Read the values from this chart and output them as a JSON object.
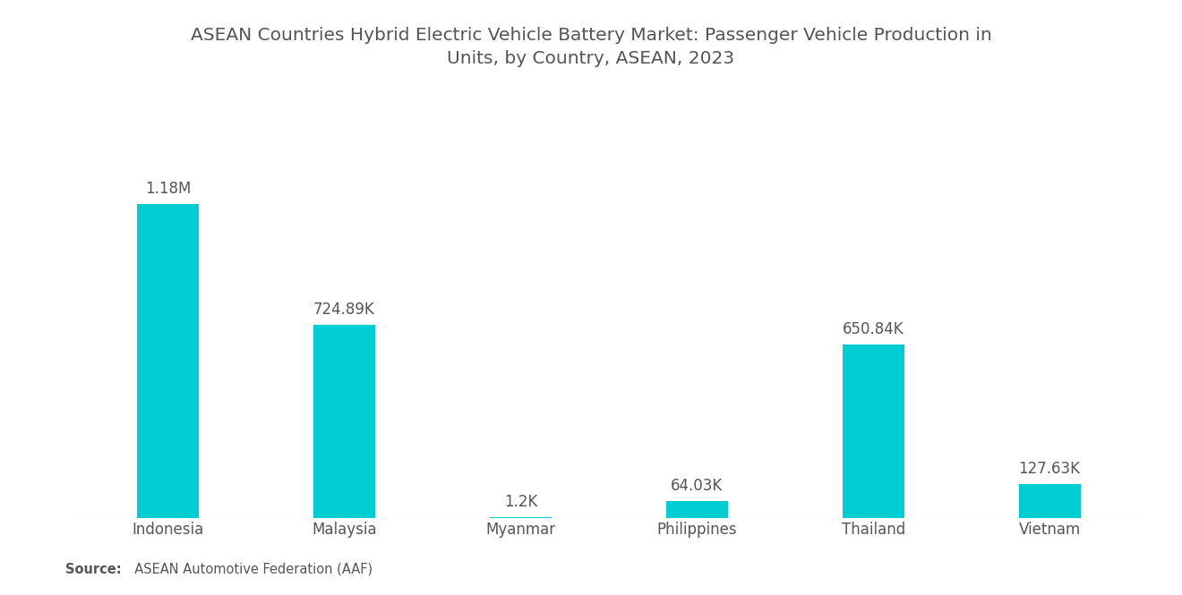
{
  "title": "ASEAN Countries Hybrid Electric Vehicle Battery Market: Passenger Vehicle Production in\nUnits, by Country, ASEAN, 2023",
  "categories": [
    "Indonesia",
    "Malaysia",
    "Myanmar",
    "Philippines",
    "Thailand",
    "Vietnam"
  ],
  "values": [
    1180000,
    724890,
    1200,
    64030,
    650840,
    127630
  ],
  "labels": [
    "1.18M",
    "724.89K",
    "1.2K",
    "64.03K",
    "650.84K",
    "127.63K"
  ],
  "bar_color": "#00CDD1",
  "background_color": "#ffffff",
  "source_bold": "Source:",
  "source_text": "  ASEAN Automotive Federation (AAF)",
  "title_fontsize": 14.5,
  "label_fontsize": 12,
  "category_fontsize": 12,
  "source_fontsize": 10.5,
  "ylim": [
    0,
    1500000
  ],
  "bar_width": 0.35
}
